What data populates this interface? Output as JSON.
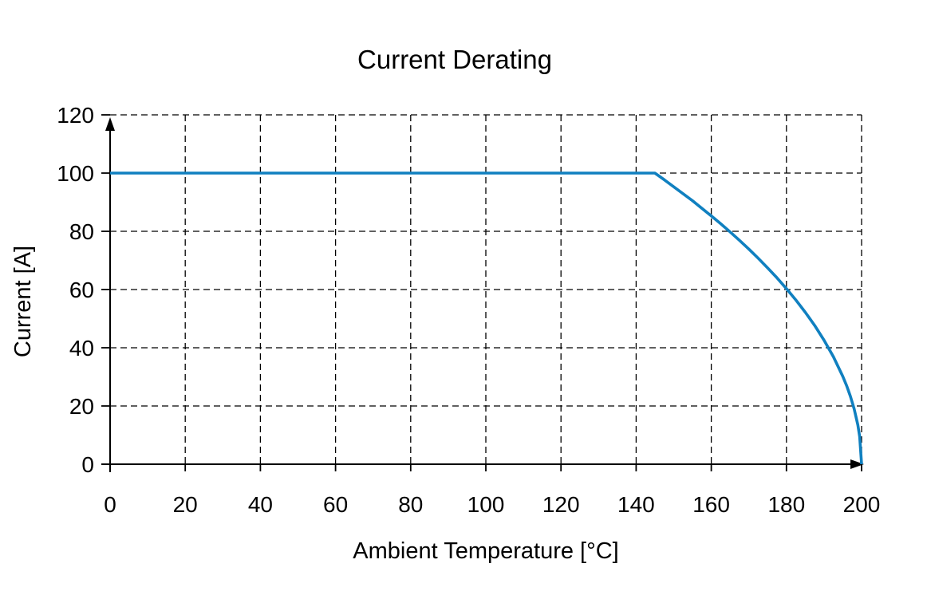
{
  "figure": {
    "background": "#ffffff"
  },
  "colors": {
    "line": "#1080c0",
    "axis": "#000000",
    "grid": "#000000",
    "text": "#000000"
  },
  "chart_data": {
    "type": "line",
    "title": "Current Derating",
    "xlabel": "Ambient Temperature [°C]",
    "ylabel": "Current [A]",
    "xlim": [
      0,
      200
    ],
    "ylim": [
      0,
      120
    ],
    "x_ticks": [
      0,
      20,
      40,
      60,
      80,
      100,
      120,
      140,
      160,
      180,
      200
    ],
    "y_ticks": [
      0,
      20,
      40,
      60,
      80,
      100,
      120
    ],
    "grid": "dashed-both-directions",
    "legend_position": "none",
    "axes_style": "arrowheads at positive ends of x and y axes",
    "series": [
      {
        "name": "Derated current limit",
        "color": "#1080c0",
        "flat_value": 100,
        "derating_start_x": 145,
        "zero_current_x": 200,
        "points": [
          [
            0,
            100
          ],
          [
            145,
            100
          ],
          [
            147.5,
            97.7
          ],
          [
            150,
            95.3
          ],
          [
            152.5,
            92.9
          ],
          [
            155,
            90.5
          ],
          [
            157.5,
            87.9
          ],
          [
            160,
            85.3
          ],
          [
            162.5,
            82.6
          ],
          [
            165,
            79.8
          ],
          [
            167.5,
            76.9
          ],
          [
            170,
            73.9
          ],
          [
            172.5,
            70.7
          ],
          [
            175,
            67.4
          ],
          [
            177.5,
            64.0
          ],
          [
            180,
            60.3
          ],
          [
            182.5,
            56.4
          ],
          [
            185,
            52.2
          ],
          [
            187.5,
            47.7
          ],
          [
            190,
            42.6
          ],
          [
            192.5,
            36.9
          ],
          [
            195,
            30.2
          ],
          [
            196,
            27.0
          ],
          [
            197,
            23.4
          ],
          [
            198,
            19.1
          ],
          [
            199,
            13.5
          ],
          [
            199.5,
            9.5
          ],
          [
            200,
            0
          ]
        ]
      }
    ]
  }
}
